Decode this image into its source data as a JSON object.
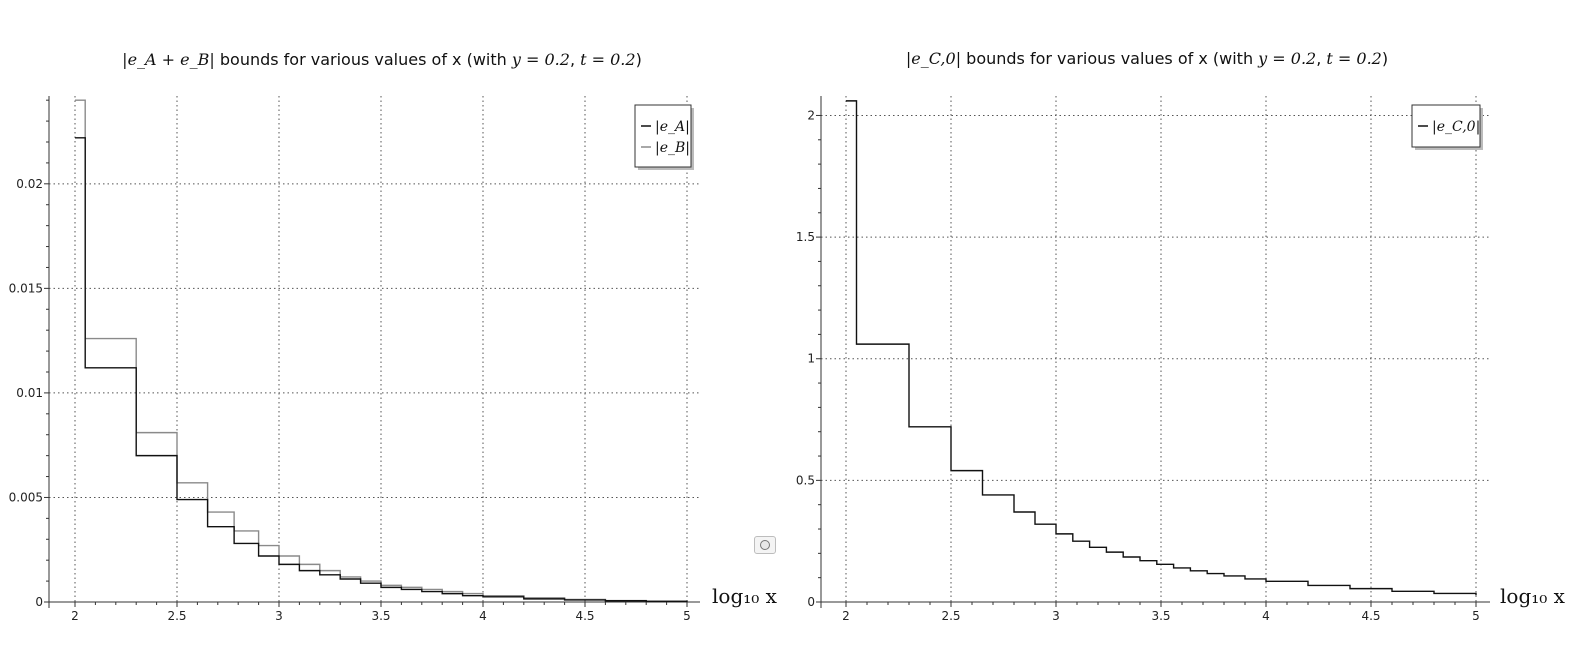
{
  "chart_data": [
    {
      "type": "line",
      "step": true,
      "title": {
        "math_prefix": "|e_A + e_B|",
        "text": " bounds for various values of x (with ",
        "y_param": "y = 0.2",
        "sep": ", ",
        "t_param": "t = 0.2",
        "close": ")"
      },
      "xlabel": "log₁₀ x",
      "ylabel": "",
      "xlim": [
        1.97,
        5.0
      ],
      "ylim": [
        0,
        0.0242
      ],
      "xticks": [
        2,
        2.5,
        3,
        3.5,
        4,
        4.5,
        5
      ],
      "xtick_labels": [
        "2",
        "2.5",
        "3",
        "3.5",
        "4",
        "4.5",
        "5"
      ],
      "yticks": [
        0,
        0.005,
        0.01,
        0.015,
        0.02
      ],
      "ytick_labels": [
        "0",
        "0.005",
        "0.01",
        "0.015",
        "0.02"
      ],
      "grid": true,
      "legend_position": "top-right",
      "series": [
        {
          "name": "|e_A|",
          "color": "#111111",
          "x": [
            2.0,
            2.05,
            2.3,
            2.5,
            2.65,
            2.78,
            2.9,
            3.0,
            3.1,
            3.2,
            3.3,
            3.4,
            3.5,
            3.6,
            3.7,
            3.8,
            3.9,
            4.0,
            4.2,
            4.4,
            4.6,
            4.8,
            5.0
          ],
          "y": [
            0.0222,
            0.0112,
            0.007,
            0.0049,
            0.0036,
            0.0028,
            0.0022,
            0.0018,
            0.0015,
            0.0013,
            0.0011,
            0.0009,
            0.0007,
            0.0006,
            0.0005,
            0.0004,
            0.0003,
            0.00025,
            0.00015,
            0.0001,
            6e-05,
            3e-05,
            2e-05
          ]
        },
        {
          "name": "|e_B|",
          "color": "#8a8a8a",
          "x": [
            2.0,
            2.05,
            2.3,
            2.5,
            2.65,
            2.78,
            2.9,
            3.0,
            3.1,
            3.2,
            3.3,
            3.4,
            3.5,
            3.6,
            3.7,
            3.8,
            3.9,
            4.0,
            4.2,
            4.4,
            4.6,
            4.8,
            5.0
          ],
          "y": [
            0.024,
            0.0126,
            0.0081,
            0.0057,
            0.0043,
            0.0034,
            0.0027,
            0.0022,
            0.0018,
            0.0015,
            0.0012,
            0.001,
            0.0008,
            0.0007,
            0.0006,
            0.0005,
            0.0004,
            0.0003,
            0.0002,
            0.00012,
            7e-05,
            4e-05,
            3e-05
          ]
        }
      ]
    },
    {
      "type": "line",
      "step": true,
      "title": {
        "math_prefix": "|e_C,0|",
        "text": " bounds for various values of x (with ",
        "y_param": "y = 0.2",
        "sep": ", ",
        "t_param": "t = 0.2",
        "close": ")"
      },
      "xlabel": "log₁₀ x",
      "ylabel": "",
      "xlim": [
        1.97,
        5.0
      ],
      "ylim": [
        0,
        2.08
      ],
      "xticks": [
        2,
        2.5,
        3,
        3.5,
        4,
        4.5,
        5
      ],
      "xtick_labels": [
        "2",
        "2.5",
        "3",
        "3.5",
        "4",
        "4.5",
        "5"
      ],
      "yticks": [
        0,
        0.5,
        1,
        1.5,
        2
      ],
      "ytick_labels": [
        "0",
        "0.5",
        "1",
        "1.5",
        "2"
      ],
      "grid": true,
      "legend_position": "top-right",
      "series": [
        {
          "name": "|e_C,0|",
          "color": "#111111",
          "x": [
            2.0,
            2.05,
            2.3,
            2.5,
            2.65,
            2.8,
            2.9,
            3.0,
            3.08,
            3.16,
            3.24,
            3.32,
            3.4,
            3.48,
            3.56,
            3.64,
            3.72,
            3.8,
            3.9,
            4.0,
            4.2,
            4.4,
            4.6,
            4.8,
            5.0
          ],
          "y": [
            2.06,
            1.06,
            0.72,
            0.54,
            0.44,
            0.37,
            0.32,
            0.28,
            0.25,
            0.225,
            0.205,
            0.185,
            0.17,
            0.155,
            0.14,
            0.128,
            0.117,
            0.107,
            0.095,
            0.085,
            0.068,
            0.055,
            0.044,
            0.035,
            0.028
          ]
        }
      ]
    }
  ],
  "controls": {
    "toggle_icon": "circle-icon"
  }
}
